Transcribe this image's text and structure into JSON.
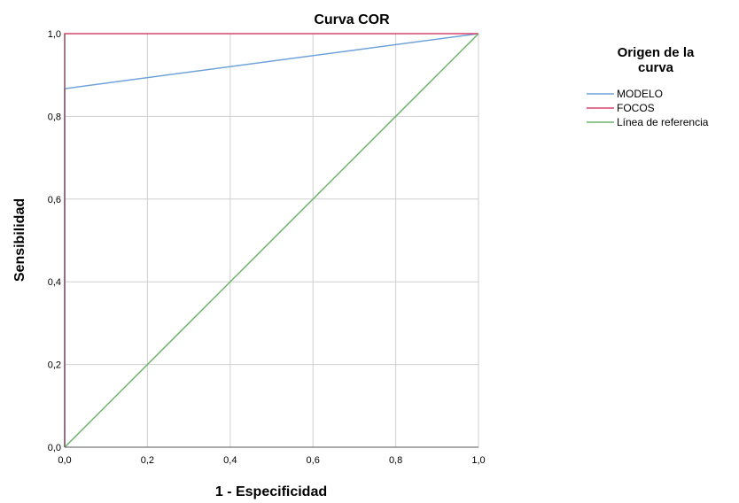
{
  "chart_data": {
    "type": "line",
    "title": "Curva COR",
    "xlabel": "1 - Especificidad",
    "ylabel": "Sensibilidad",
    "xlim": [
      0,
      1
    ],
    "ylim": [
      0,
      1
    ],
    "grid": true,
    "legend_position": "right",
    "xticks": [
      "0,0",
      "0,2",
      "0,4",
      "0,6",
      "0,8",
      "1,0"
    ],
    "yticks": [
      "0,0",
      "0,2",
      "0,4",
      "0,6",
      "0,8",
      "1,0"
    ],
    "legend_title_lines": [
      "Origen de la",
      "curva"
    ],
    "series": [
      {
        "name": "MODELO",
        "color": "#6fa2d9",
        "x": [
          0,
          0,
          1
        ],
        "y": [
          0,
          0.867,
          1
        ]
      },
      {
        "name": "FOCOS",
        "color": "#d9456b",
        "x": [
          0,
          0,
          1
        ],
        "y": [
          0,
          1,
          1
        ]
      },
      {
        "name": "Línea de referencia",
        "color": "#6db36b",
        "x": [
          0,
          1
        ],
        "y": [
          0,
          1
        ]
      }
    ]
  }
}
